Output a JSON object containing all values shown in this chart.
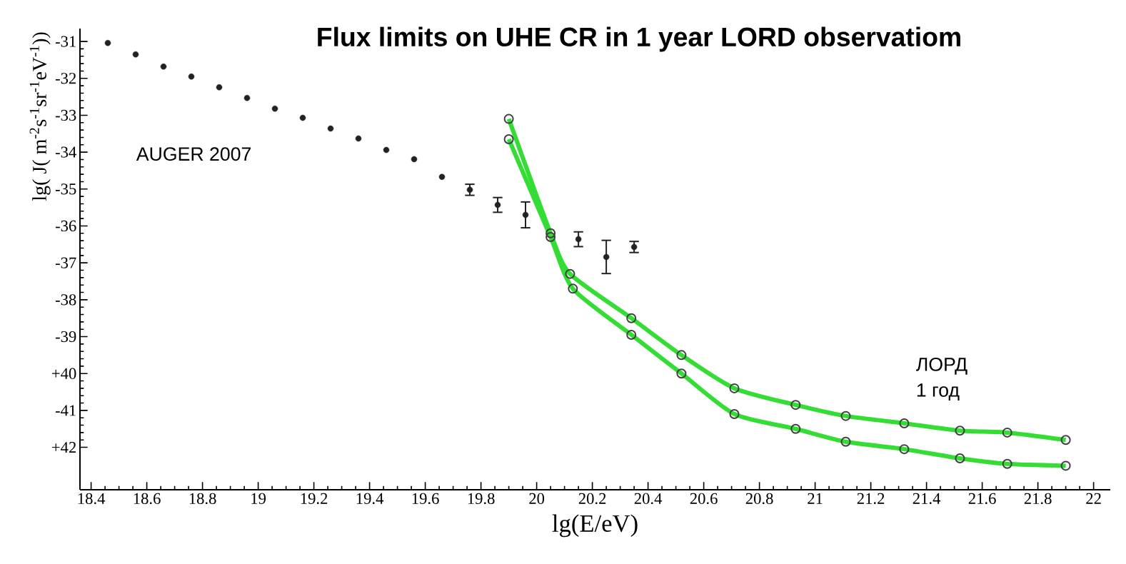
{
  "chart_data": {
    "type": "scatter",
    "title": "Flux limits on UHE CR in 1 year  LORD observatiom",
    "xlabel": "lg(E/eV)",
    "ylabel": "lg( J( m$^{-2}$s$^{-1}$sr$^{-1}$eV$^{-1}$))",
    "annotations": [
      "AUGER 2007",
      "ЛОРД",
      "1 год"
    ],
    "xlim": [
      18.36,
      22.06
    ],
    "ylim": [
      -43.15,
      -30.65
    ],
    "xticks": [
      18.4,
      18.6,
      18.8,
      19,
      19.2,
      19.4,
      19.6,
      19.8,
      20,
      20.2,
      20.4,
      20.6,
      20.8,
      21,
      21.2,
      21.4,
      21.6,
      21.8,
      22
    ],
    "yticks": [
      -31,
      -32,
      -33,
      -34,
      -35,
      -36,
      -37,
      -38,
      -39,
      {
        "value": -40,
        "label": "+40"
      },
      -41,
      {
        "value": -42,
        "label": "+42"
      }
    ],
    "marker": "circle",
    "series": [
      {
        "color": "#222222",
        "x": [
          18.46,
          18.56,
          18.66,
          18.76,
          18.86,
          18.96,
          19.06,
          19.16,
          19.26,
          19.36,
          19.46,
          19.56,
          19.66,
          19.76,
          19.86,
          19.96,
          20.15,
          20.25,
          20.35
        ],
        "values": [
          -31.04,
          -31.35,
          -31.68,
          -31.95,
          -32.24,
          -32.53,
          -32.82,
          -33.07,
          -33.36,
          -33.63,
          -33.94,
          -34.19,
          -34.67,
          -35.02,
          -35.43,
          -35.7,
          -36.36,
          -36.84,
          -36.57
        ],
        "errors": [
          null,
          null,
          null,
          null,
          null,
          null,
          null,
          null,
          null,
          null,
          null,
          null,
          null,
          0.15,
          0.2,
          0.35,
          0.2,
          0.45,
          0.15
        ]
      },
      {
        "type": "line",
        "color": "#33dd33",
        "x": [
          19.9,
          20.05,
          20.12,
          20.34,
          20.52,
          20.71,
          20.93,
          21.11,
          21.32,
          21.52,
          21.69,
          21.9
        ],
        "values": [
          -33.1,
          -36.2,
          -37.3,
          -38.5,
          -39.5,
          -40.4,
          -40.85,
          -41.15,
          -41.35,
          -41.55,
          -41.6,
          -41.8
        ]
      },
      {
        "type": "line",
        "color": "#33dd33",
        "x": [
          19.9,
          20.05,
          20.13,
          20.34,
          20.52,
          20.71,
          20.93,
          21.11,
          21.32,
          21.52,
          21.69,
          21.9
        ],
        "values": [
          -33.65,
          -36.3,
          -37.7,
          -38.95,
          -40.0,
          -41.1,
          -41.5,
          -41.85,
          -42.05,
          -42.3,
          -42.45,
          -42.5
        ]
      }
    ]
  }
}
